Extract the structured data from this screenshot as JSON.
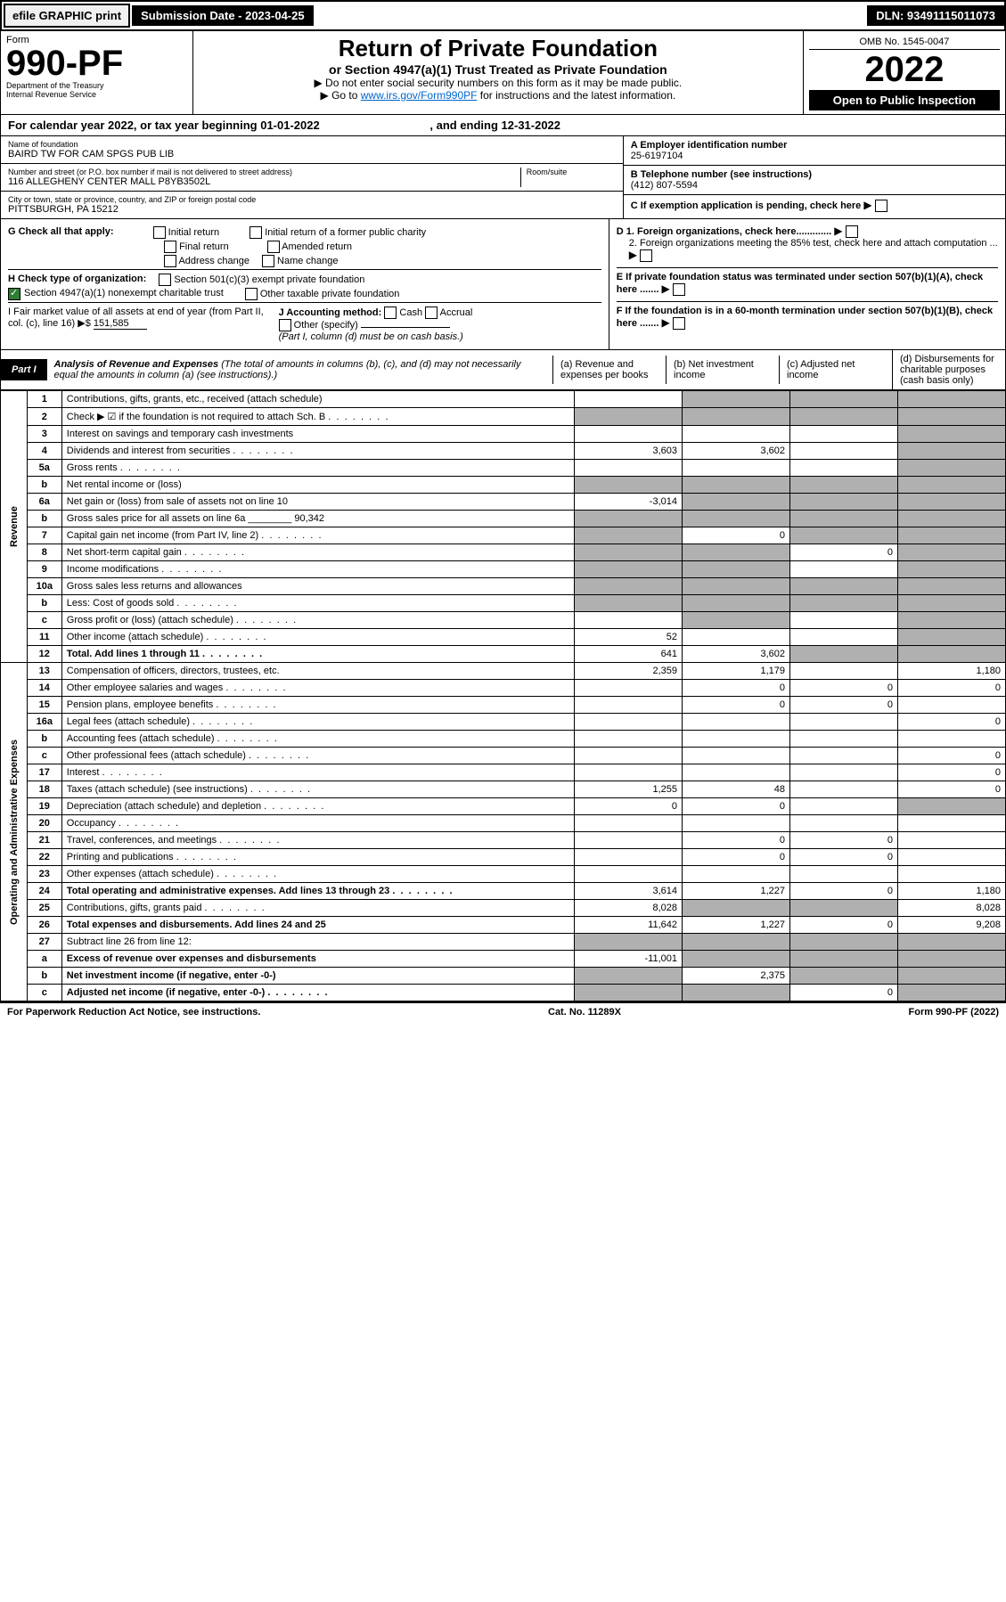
{
  "topbar": {
    "efile": "efile GRAPHIC print",
    "submission_label": "Submission Date - 2023-04-25",
    "dln": "DLN: 93491115011073"
  },
  "header": {
    "form_word": "Form",
    "form_number": "990-PF",
    "dept": "Department of the Treasury",
    "irs": "Internal Revenue Service",
    "title": "Return of Private Foundation",
    "subtitle": "or Section 4947(a)(1) Trust Treated as Private Foundation",
    "instr1": "▶ Do not enter social security numbers on this form as it may be made public.",
    "instr2_pre": "▶ Go to ",
    "instr2_link": "www.irs.gov/Form990PF",
    "instr2_post": " for instructions and the latest information.",
    "omb": "OMB No. 1545-0047",
    "year": "2022",
    "inspection": "Open to Public Inspection"
  },
  "cal_year": {
    "text": "For calendar year 2022, or tax year beginning 01-01-2022",
    "end": ", and ending 12-31-2022"
  },
  "foundation": {
    "name_label": "Name of foundation",
    "name": "BAIRD TW FOR CAM SPGS PUB LIB",
    "street_label": "Number and street (or P.O. box number if mail is not delivered to street address)",
    "street": "116 ALLEGHENY CENTER MALL P8YB3502L",
    "room_label": "Room/suite",
    "city_label": "City or town, state or province, country, and ZIP or foreign postal code",
    "city": "PITTSBURGH, PA  15212"
  },
  "right_info": {
    "ein_label": "A Employer identification number",
    "ein": "25-6197104",
    "phone_label": "B Telephone number (see instructions)",
    "phone": "(412) 807-5594",
    "c": "C If exemption application is pending, check here",
    "d1": "D 1. Foreign organizations, check here.............",
    "d2": "2. Foreign organizations meeting the 85% test, check here and attach computation ...",
    "e": "E If private foundation status was terminated under section 507(b)(1)(A), check here .......",
    "f": "F If the foundation is in a 60-month termination under section 507(b)(1)(B), check here .......",
    "arrow": "▶"
  },
  "checks": {
    "g_label": "G Check all that apply:",
    "initial": "Initial return",
    "initial_former": "Initial return of a former public charity",
    "final": "Final return",
    "amended": "Amended return",
    "address": "Address change",
    "name_change": "Name change",
    "h_label": "H Check type of organization:",
    "h1": "Section 501(c)(3) exempt private foundation",
    "h2": "Section 4947(a)(1) nonexempt charitable trust",
    "h3": "Other taxable private foundation",
    "i_label": "I Fair market value of all assets at end of year (from Part II, col. (c), line 16) ▶$",
    "i_value": "151,585",
    "j_label": "J Accounting method:",
    "j_cash": "Cash",
    "j_accrual": "Accrual",
    "j_other": "Other (specify)",
    "j_note": "(Part I, column (d) must be on cash basis.)"
  },
  "part1": {
    "label": "Part I",
    "title": "Analysis of Revenue and Expenses",
    "note": "(The total of amounts in columns (b), (c), and (d) may not necessarily equal the amounts in column (a) (see instructions).)",
    "cols": {
      "a": "(a) Revenue and expenses per books",
      "b": "(b) Net investment income",
      "c": "(c) Adjusted net income",
      "d": "(d) Disbursements for charitable purposes (cash basis only)"
    }
  },
  "side": {
    "revenue": "Revenue",
    "expenses": "Operating and Administrative Expenses"
  },
  "rows": [
    {
      "n": "1",
      "desc": "Contributions, gifts, grants, etc., received (attach schedule)",
      "a": "",
      "b": "",
      "c": "",
      "d": "",
      "shade_d": true,
      "shade_c": true,
      "shade_b": true
    },
    {
      "n": "2",
      "desc": "Check ▶ ☑ if the foundation is not required to attach Sch. B",
      "dots": true,
      "a": "",
      "shade_all": true
    },
    {
      "n": "3",
      "desc": "Interest on savings and temporary cash investments",
      "a": "",
      "b": "",
      "c": "",
      "d": "",
      "shade_d": true
    },
    {
      "n": "4",
      "desc": "Dividends and interest from securities",
      "dots": true,
      "a": "3,603",
      "b": "3,602",
      "c": "",
      "d": "",
      "shade_d": true
    },
    {
      "n": "5a",
      "desc": "Gross rents",
      "dots": true,
      "a": "",
      "b": "",
      "c": "",
      "d": "",
      "shade_d": true
    },
    {
      "n": "b",
      "desc": "Net rental income or (loss)",
      "inline": true,
      "shade_all": true
    },
    {
      "n": "6a",
      "desc": "Net gain or (loss) from sale of assets not on line 10",
      "a": "-3,014",
      "shade_b": true,
      "shade_c": true,
      "shade_d": true
    },
    {
      "n": "b",
      "desc": "Gross sales price for all assets on line 6a",
      "inline_val": "90,342",
      "shade_all": true
    },
    {
      "n": "7",
      "desc": "Capital gain net income (from Part IV, line 2)",
      "dots": true,
      "shade_a": true,
      "b": "0",
      "shade_c": true,
      "shade_d": true
    },
    {
      "n": "8",
      "desc": "Net short-term capital gain",
      "dots": true,
      "shade_a": true,
      "shade_b": true,
      "c": "0",
      "shade_d": true
    },
    {
      "n": "9",
      "desc": "Income modifications",
      "dots": true,
      "shade_a": true,
      "shade_b": true,
      "c": "",
      "shade_d": true
    },
    {
      "n": "10a",
      "desc": "Gross sales less returns and allowances",
      "inline": true,
      "shade_all": true
    },
    {
      "n": "b",
      "desc": "Less: Cost of goods sold",
      "dots": true,
      "inline": true,
      "shade_all": true
    },
    {
      "n": "c",
      "desc": "Gross profit or (loss) (attach schedule)",
      "dots": true,
      "shade_a": false,
      "shade_b": true,
      "c": "",
      "shade_d": true
    },
    {
      "n": "11",
      "desc": "Other income (attach schedule)",
      "dots": true,
      "a": "52",
      "b": "",
      "c": "",
      "shade_d": true
    },
    {
      "n": "12",
      "desc": "Total. Add lines 1 through 11",
      "dots": true,
      "bold": true,
      "a": "641",
      "b": "3,602",
      "shade_c": true,
      "shade_d": true
    },
    {
      "n": "13",
      "desc": "Compensation of officers, directors, trustees, etc.",
      "a": "2,359",
      "b": "1,179",
      "c": "",
      "d": "1,180"
    },
    {
      "n": "14",
      "desc": "Other employee salaries and wages",
      "dots": true,
      "a": "",
      "b": "0",
      "c": "0",
      "d": "0"
    },
    {
      "n": "15",
      "desc": "Pension plans, employee benefits",
      "dots": true,
      "a": "",
      "b": "0",
      "c": "0",
      "d": ""
    },
    {
      "n": "16a",
      "desc": "Legal fees (attach schedule)",
      "dots": true,
      "a": "",
      "b": "",
      "c": "",
      "d": "0"
    },
    {
      "n": "b",
      "desc": "Accounting fees (attach schedule)",
      "dots": true,
      "a": "",
      "b": "",
      "c": "",
      "d": ""
    },
    {
      "n": "c",
      "desc": "Other professional fees (attach schedule)",
      "dots": true,
      "a": "",
      "b": "",
      "c": "",
      "d": "0"
    },
    {
      "n": "17",
      "desc": "Interest",
      "dots": true,
      "a": "",
      "b": "",
      "c": "",
      "d": "0"
    },
    {
      "n": "18",
      "desc": "Taxes (attach schedule) (see instructions)",
      "dots": true,
      "a": "1,255",
      "b": "48",
      "c": "",
      "d": "0"
    },
    {
      "n": "19",
      "desc": "Depreciation (attach schedule) and depletion",
      "dots": true,
      "a": "0",
      "b": "0",
      "c": "",
      "shade_d": true
    },
    {
      "n": "20",
      "desc": "Occupancy",
      "dots": true,
      "a": "",
      "b": "",
      "c": "",
      "d": ""
    },
    {
      "n": "21",
      "desc": "Travel, conferences, and meetings",
      "dots": true,
      "a": "",
      "b": "0",
      "c": "0",
      "d": ""
    },
    {
      "n": "22",
      "desc": "Printing and publications",
      "dots": true,
      "a": "",
      "b": "0",
      "c": "0",
      "d": ""
    },
    {
      "n": "23",
      "desc": "Other expenses (attach schedule)",
      "dots": true,
      "a": "",
      "b": "",
      "c": "",
      "d": ""
    },
    {
      "n": "24",
      "desc": "Total operating and administrative expenses. Add lines 13 through 23",
      "dots": true,
      "bold": true,
      "a": "3,614",
      "b": "1,227",
      "c": "0",
      "d": "1,180"
    },
    {
      "n": "25",
      "desc": "Contributions, gifts, grants paid",
      "dots": true,
      "a": "8,028",
      "shade_b": true,
      "shade_c": true,
      "d": "8,028"
    },
    {
      "n": "26",
      "desc": "Total expenses and disbursements. Add lines 24 and 25",
      "bold": true,
      "a": "11,642",
      "b": "1,227",
      "c": "0",
      "d": "9,208"
    },
    {
      "n": "27",
      "desc": "Subtract line 26 from line 12:",
      "shade_a": true,
      "shade_b": true,
      "shade_c": true,
      "shade_d": true
    },
    {
      "n": "a",
      "desc": "Excess of revenue over expenses and disbursements",
      "bold": true,
      "a": "-11,001",
      "shade_b": true,
      "shade_c": true,
      "shade_d": true
    },
    {
      "n": "b",
      "desc": "Net investment income (if negative, enter -0-)",
      "bold": true,
      "shade_a": true,
      "b": "2,375",
      "shade_c": true,
      "shade_d": true
    },
    {
      "n": "c",
      "desc": "Adjusted net income (if negative, enter -0-)",
      "dots": true,
      "bold": true,
      "shade_a": true,
      "shade_b": true,
      "c": "0",
      "shade_d": true
    }
  ],
  "footer": {
    "left": "For Paperwork Reduction Act Notice, see instructions.",
    "mid": "Cat. No. 11289X",
    "right": "Form 990-PF (2022)"
  }
}
